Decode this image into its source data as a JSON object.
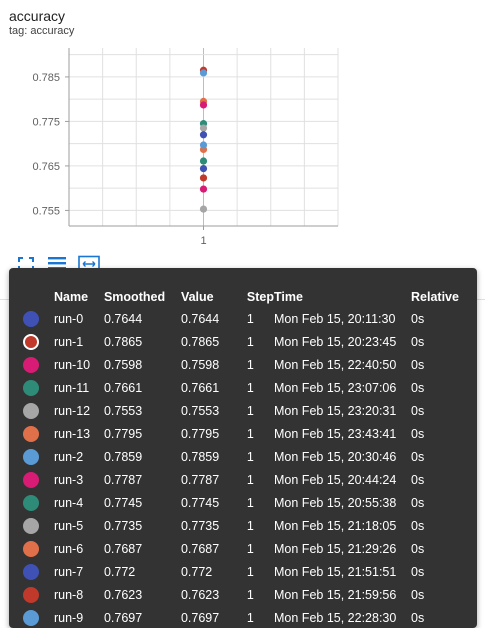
{
  "card": {
    "title": "accuracy",
    "subtitle": "tag: accuracy"
  },
  "chart_data": {
    "type": "scatter",
    "title": "accuracy",
    "x_ticks": [
      "1"
    ],
    "y_ticks": [
      "0.785",
      "0.775",
      "0.765",
      "0.755"
    ],
    "y_tick_values": [
      0.785,
      0.775,
      0.765,
      0.755
    ],
    "ylim": [
      0.7515,
      0.7915
    ],
    "grid": true,
    "series": [
      {
        "name": "run-0",
        "x": 1,
        "y": 0.7644,
        "color": "#3f51b5"
      },
      {
        "name": "run-1",
        "x": 1,
        "y": 0.7865,
        "color": "#c0392b"
      },
      {
        "name": "run-10",
        "x": 1,
        "y": 0.7598,
        "color": "#d81b75"
      },
      {
        "name": "run-11",
        "x": 1,
        "y": 0.7661,
        "color": "#2e8b78"
      },
      {
        "name": "run-12",
        "x": 1,
        "y": 0.7553,
        "color": "#a6a6a6"
      },
      {
        "name": "run-13",
        "x": 1,
        "y": 0.7795,
        "color": "#e0704a"
      },
      {
        "name": "run-2",
        "x": 1,
        "y": 0.7859,
        "color": "#5b9bd5"
      },
      {
        "name": "run-3",
        "x": 1,
        "y": 0.7787,
        "color": "#d81b75"
      },
      {
        "name": "run-4",
        "x": 1,
        "y": 0.7745,
        "color": "#2e8b78"
      },
      {
        "name": "run-5",
        "x": 1,
        "y": 0.7735,
        "color": "#a6a6a6"
      },
      {
        "name": "run-6",
        "x": 1,
        "y": 0.7687,
        "color": "#e0704a"
      },
      {
        "name": "run-7",
        "x": 1,
        "y": 0.772,
        "color": "#3f51b5"
      },
      {
        "name": "run-8",
        "x": 1,
        "y": 0.7623,
        "color": "#c0392b"
      },
      {
        "name": "run-9",
        "x": 1,
        "y": 0.7697,
        "color": "#5b9bd5"
      }
    ]
  },
  "toolbar": {
    "fullscreen_icon": "fullscreen-icon",
    "data_table_icon": "list-icon",
    "fit_domain_icon": "fit-to-data-icon",
    "accent_color": "#1976d2"
  },
  "tooltip": {
    "headers": {
      "name": "Name",
      "smoothed": "Smoothed",
      "value": "Value",
      "step": "Step",
      "time": "Time",
      "relative": "Relative"
    },
    "rows": [
      {
        "name": "run-0",
        "smoothed": "0.7644",
        "value": "0.7644",
        "step": "1",
        "time": "Mon Feb 15, 20:11:30",
        "relative": "0s",
        "color": "#3f51b5"
      },
      {
        "name": "run-1",
        "smoothed": "0.7865",
        "value": "0.7865",
        "step": "1",
        "time": "Mon Feb 15, 20:23:45",
        "relative": "0s",
        "color": "#c0392b",
        "selected": true
      },
      {
        "name": "run-10",
        "smoothed": "0.7598",
        "value": "0.7598",
        "step": "1",
        "time": "Mon Feb 15, 22:40:50",
        "relative": "0s",
        "color": "#d81b75"
      },
      {
        "name": "run-11",
        "smoothed": "0.7661",
        "value": "0.7661",
        "step": "1",
        "time": "Mon Feb 15, 23:07:06",
        "relative": "0s",
        "color": "#2e8b78"
      },
      {
        "name": "run-12",
        "smoothed": "0.7553",
        "value": "0.7553",
        "step": "1",
        "time": "Mon Feb 15, 23:20:31",
        "relative": "0s",
        "color": "#a6a6a6"
      },
      {
        "name": "run-13",
        "smoothed": "0.7795",
        "value": "0.7795",
        "step": "1",
        "time": "Mon Feb 15, 23:43:41",
        "relative": "0s",
        "color": "#e0704a"
      },
      {
        "name": "run-2",
        "smoothed": "0.7859",
        "value": "0.7859",
        "step": "1",
        "time": "Mon Feb 15, 20:30:46",
        "relative": "0s",
        "color": "#5b9bd5"
      },
      {
        "name": "run-3",
        "smoothed": "0.7787",
        "value": "0.7787",
        "step": "1",
        "time": "Mon Feb 15, 20:44:24",
        "relative": "0s",
        "color": "#d81b75"
      },
      {
        "name": "run-4",
        "smoothed": "0.7745",
        "value": "0.7745",
        "step": "1",
        "time": "Mon Feb 15, 20:55:38",
        "relative": "0s",
        "color": "#2e8b78"
      },
      {
        "name": "run-5",
        "smoothed": "0.7735",
        "value": "0.7735",
        "step": "1",
        "time": "Mon Feb 15, 21:18:05",
        "relative": "0s",
        "color": "#a6a6a6"
      },
      {
        "name": "run-6",
        "smoothed": "0.7687",
        "value": "0.7687",
        "step": "1",
        "time": "Mon Feb 15, 21:29:26",
        "relative": "0s",
        "color": "#e0704a"
      },
      {
        "name": "run-7",
        "smoothed": "0.772",
        "value": "0.772",
        "step": "1",
        "time": "Mon Feb 15, 21:51:51",
        "relative": "0s",
        "color": "#3f51b5"
      },
      {
        "name": "run-8",
        "smoothed": "0.7623",
        "value": "0.7623",
        "step": "1",
        "time": "Mon Feb 15, 21:59:56",
        "relative": "0s",
        "color": "#c0392b"
      },
      {
        "name": "run-9",
        "smoothed": "0.7697",
        "value": "0.7697",
        "step": "1",
        "time": "Mon Feb 15, 22:28:30",
        "relative": "0s",
        "color": "#5b9bd5"
      }
    ]
  }
}
